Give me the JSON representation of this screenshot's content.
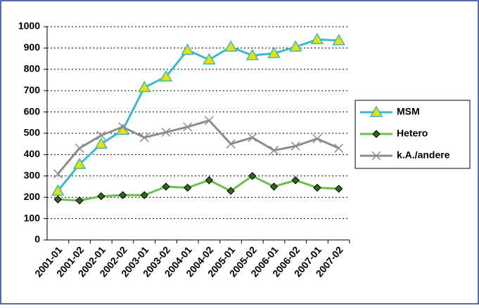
{
  "chart_data": {
    "type": "line",
    "categories": [
      "2001-01",
      "2001-02",
      "2002-01",
      "2002-02",
      "2003-01",
      "2003-02",
      "2004-01",
      "2004-02",
      "2005-01",
      "2005-02",
      "2006-01",
      "2006-02",
      "2007-01",
      "2007-02"
    ],
    "series": [
      {
        "name": "MSM",
        "color": "#3cb8c8",
        "marker": "triangle",
        "values": [
          230,
          355,
          450,
          515,
          715,
          765,
          890,
          845,
          905,
          865,
          875,
          905,
          940,
          935
        ]
      },
      {
        "name": "Hetero",
        "color": "#6cbf4a",
        "marker": "diamond",
        "values": [
          190,
          185,
          205,
          210,
          210,
          250,
          245,
          280,
          230,
          300,
          250,
          280,
          245,
          240
        ]
      },
      {
        "name": "k.A./andere",
        "color": "#8c8c8c",
        "marker": "x",
        "values": [
          310,
          430,
          490,
          530,
          480,
          505,
          530,
          560,
          450,
          480,
          420,
          440,
          475,
          430
        ]
      }
    ],
    "ylim": [
      0,
      1000
    ],
    "yticks": [
      0,
      100,
      200,
      300,
      400,
      500,
      600,
      700,
      800,
      900,
      1000
    ],
    "grid": true,
    "legend": "right"
  }
}
